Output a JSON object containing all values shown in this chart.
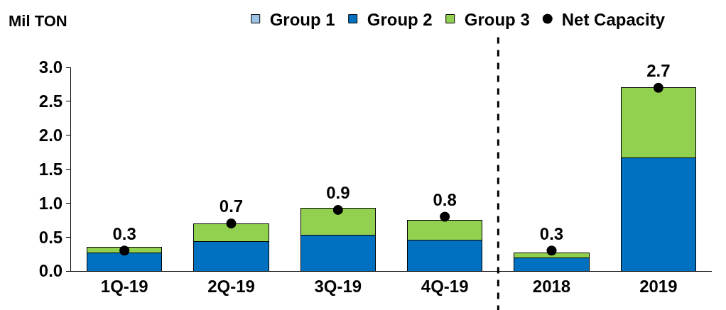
{
  "chart_data": {
    "type": "bar",
    "stacked": true,
    "ylabel": "Mil TON",
    "categories": [
      "1Q-19",
      "2Q-19",
      "3Q-19",
      "4Q-19",
      "2018",
      "2019"
    ],
    "series": [
      {
        "name": "Group 1",
        "color": "#9dc3e6",
        "values": [
          0,
          0,
          0,
          0,
          0,
          0
        ]
      },
      {
        "name": "Group 2",
        "color": "#0070c0",
        "values": [
          0.27,
          0.43,
          0.53,
          0.45,
          0.19,
          1.67
        ]
      },
      {
        "name": "Group 3",
        "color": "#92d050",
        "values": [
          0.08,
          0.27,
          0.4,
          0.3,
          0.08,
          1.03
        ]
      },
      {
        "name": "Net Capacity",
        "type": "scatter",
        "marker": "circle",
        "color": "#000000",
        "values": [
          0.3,
          0.7,
          0.9,
          0.8,
          0.3,
          2.7
        ],
        "data_labels": true
      }
    ],
    "ylim": [
      0,
      3
    ],
    "yticks": [
      {
        "value": 0,
        "label": "0.0"
      },
      {
        "value": 0.5,
        "label": "0.5"
      },
      {
        "value": 1,
        "label": "1.0"
      },
      {
        "value": 1.5,
        "label": "1.5"
      },
      {
        "value": 2,
        "label": "2.0"
      },
      {
        "value": 2.5,
        "label": "2.5"
      },
      {
        "value": 3,
        "label": "3.0"
      }
    ],
    "legend": "top"
  }
}
